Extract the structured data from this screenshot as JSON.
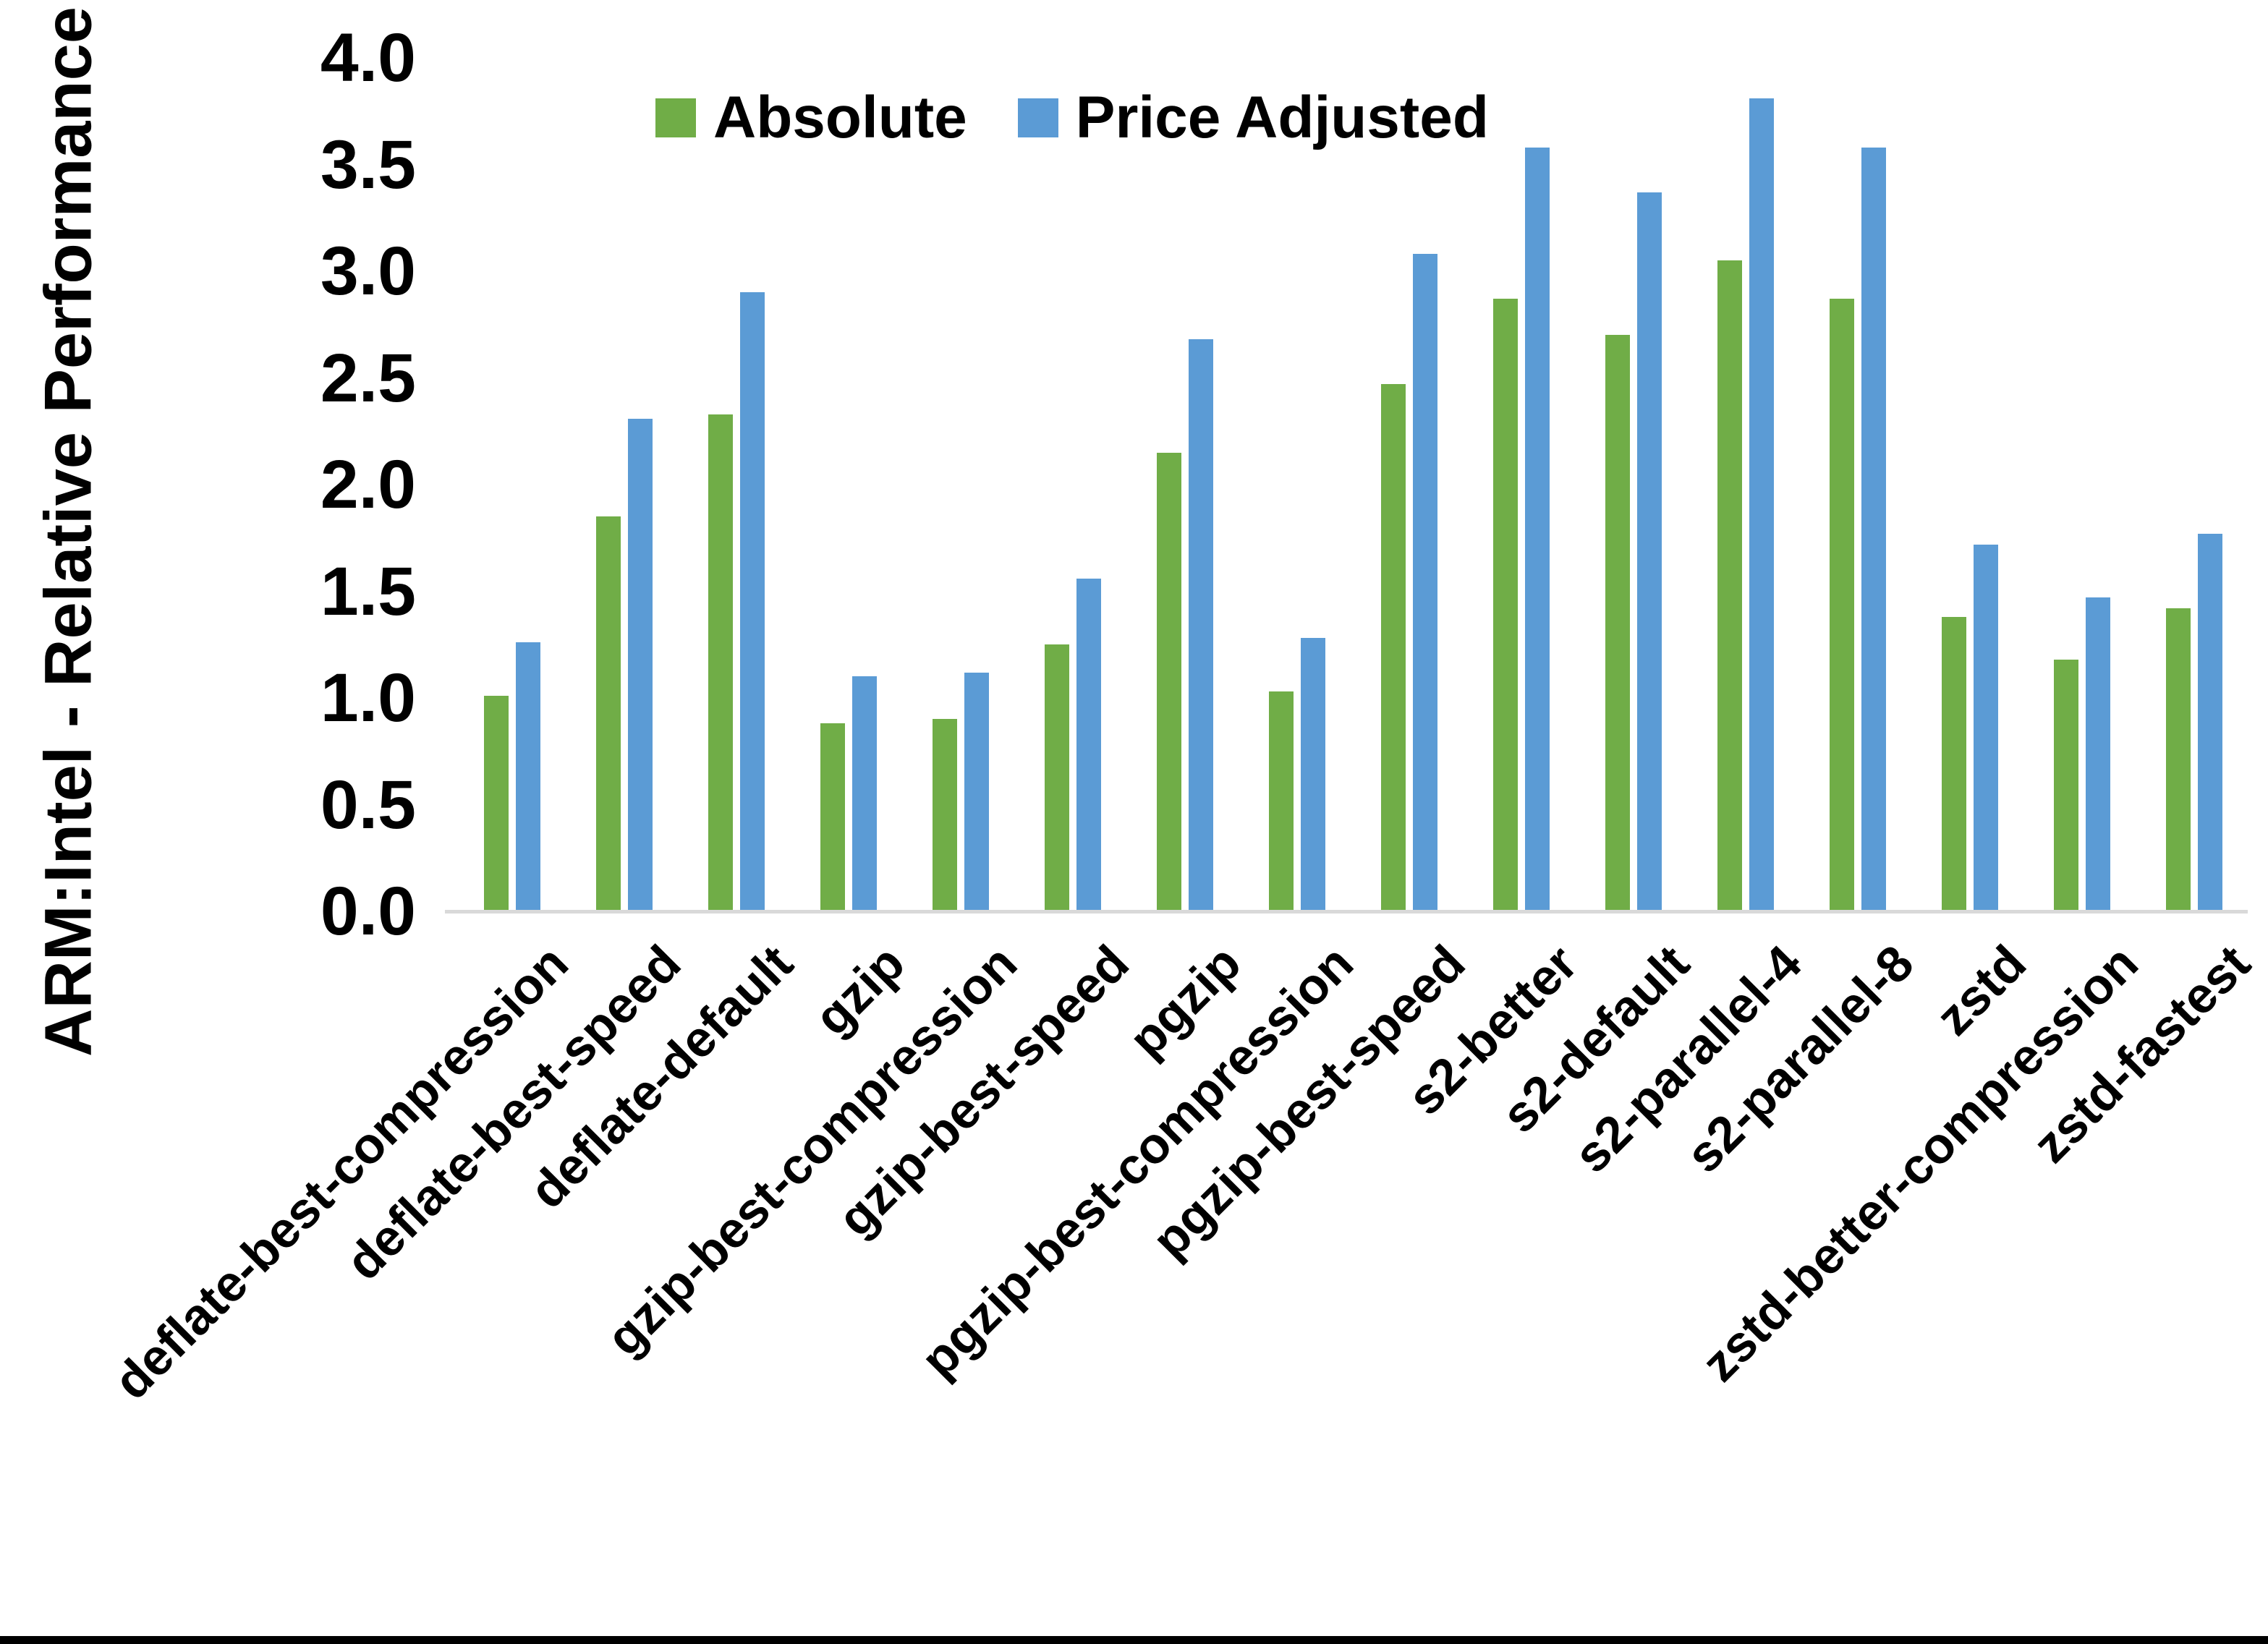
{
  "chart_data": {
    "type": "bar",
    "title": "",
    "xlabel": "",
    "ylabel": "ARM:Intel - Relative Performance",
    "ylim": [
      0.0,
      4.0
    ],
    "y_ticks": [
      "0.0",
      "0.5",
      "1.0",
      "1.5",
      "2.0",
      "2.5",
      "3.0",
      "3.5",
      "4.0"
    ],
    "grid": false,
    "legend_position": "top-center",
    "axis_line_color": "#d9d9d9",
    "text_color": "#000000",
    "categories": [
      "deflate-best-compression",
      "deflate-best-speed",
      "deflate-default",
      "gzip",
      "gzip-best-compression",
      "gzip-best-speed",
      "pgzip",
      "pgzip-best-compression",
      "pgzip-best-speed",
      "s2-better",
      "s2-default",
      "s2-parallel-4",
      "s2-parallel-8",
      "zstd",
      "zstd-better-compression",
      "zstd-fastest"
    ],
    "series": [
      {
        "name": "Absolute",
        "color": "#70ad47",
        "values": [
          1.01,
          1.85,
          2.33,
          0.88,
          0.9,
          1.25,
          2.15,
          1.03,
          2.47,
          2.87,
          2.7,
          3.05,
          2.87,
          1.38,
          1.18,
          1.42
        ]
      },
      {
        "name": "Price Adjusted",
        "color": "#5b9bd5",
        "values": [
          1.26,
          2.31,
          2.9,
          1.1,
          1.12,
          1.56,
          2.68,
          1.28,
          3.08,
          3.58,
          3.37,
          3.81,
          3.58,
          1.72,
          1.47,
          1.77
        ]
      }
    ]
  },
  "figure": {
    "background": "#ffffff",
    "bottom_edge_bar_color": "#000000"
  }
}
